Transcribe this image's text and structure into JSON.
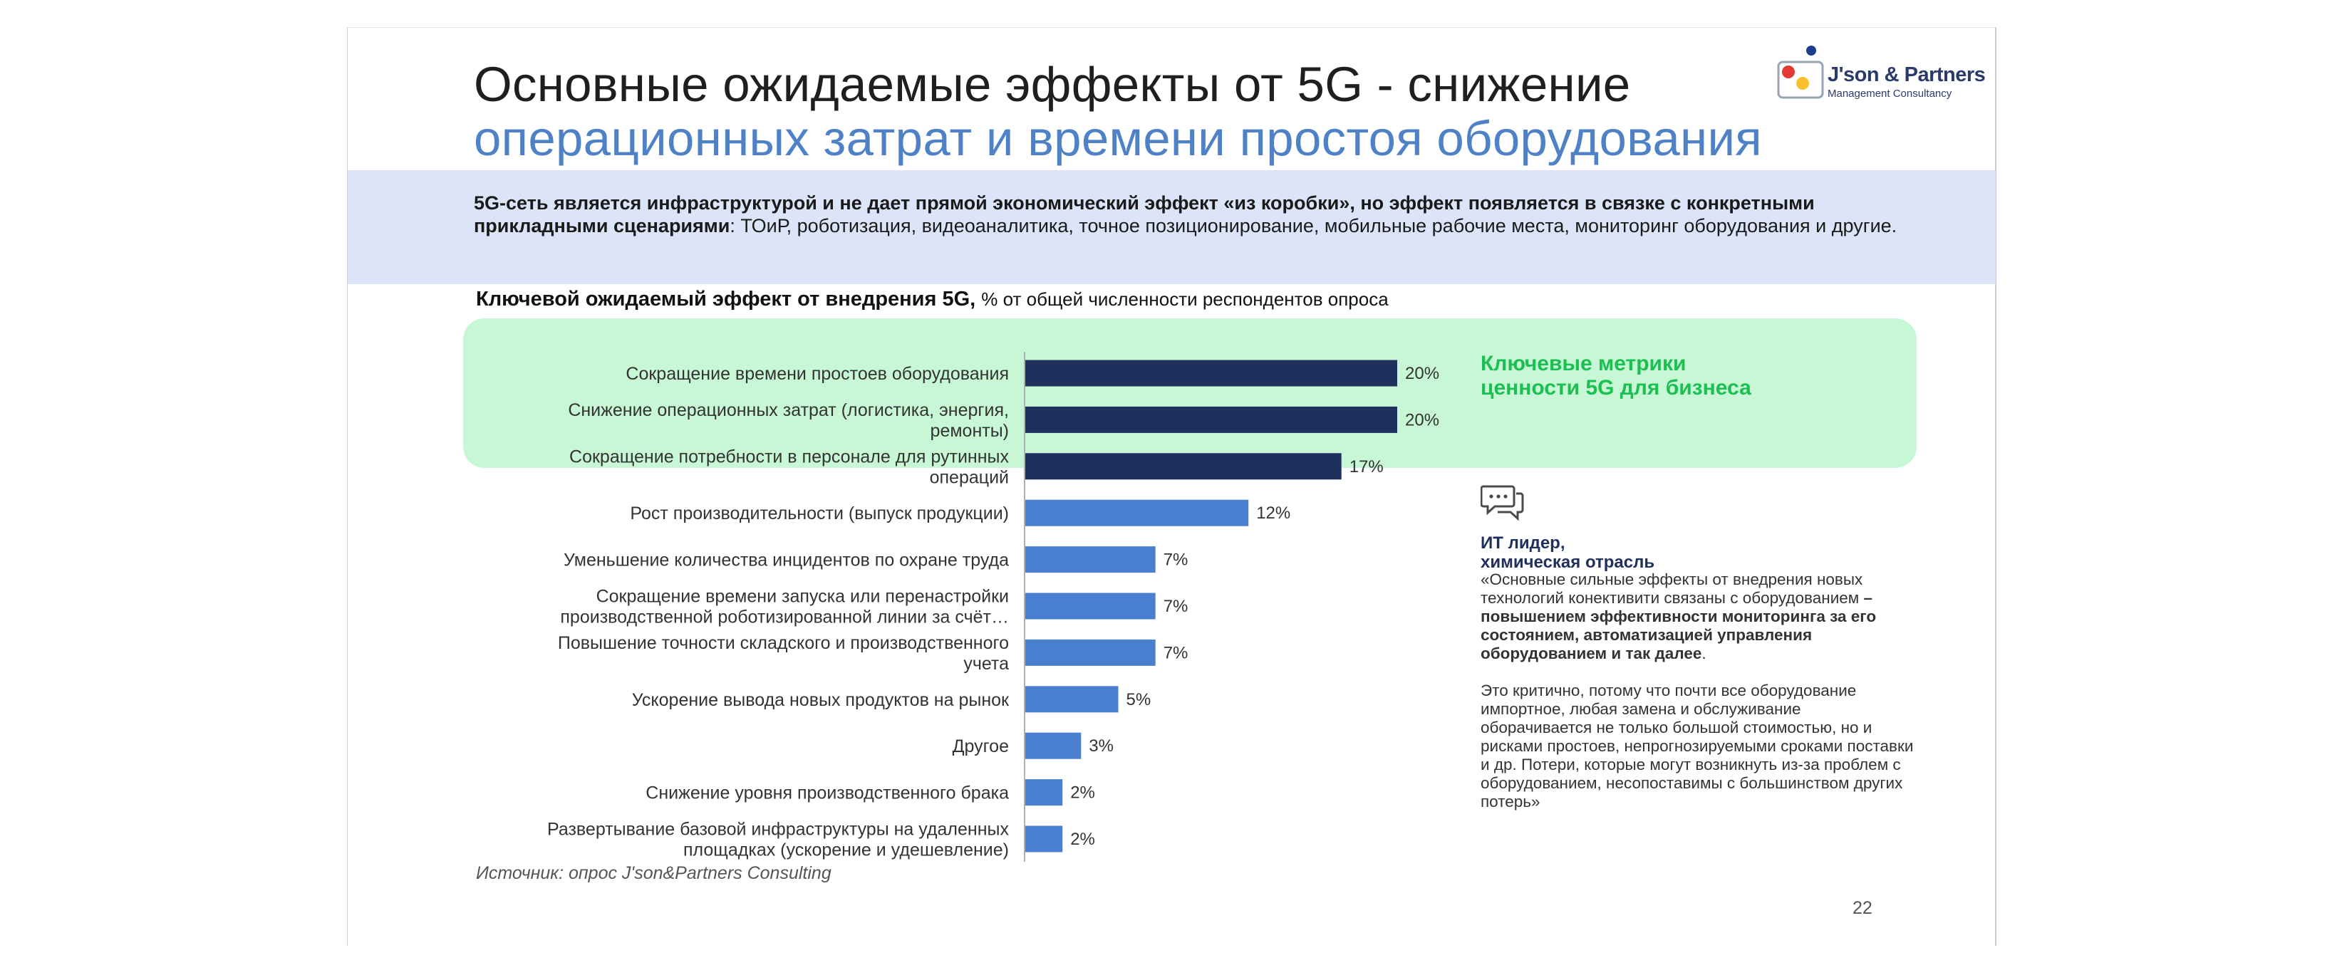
{
  "slide": {
    "title_line1": "Основные ожидаемые эффекты от 5G - снижение",
    "title_line2": "операционных затрат и времени простоя оборудования",
    "logo": {
      "name": "J'son & Partners",
      "subtitle": "Management Consultancy",
      "dot_colors": [
        "#e53935",
        "#fbc02d",
        "#1e3c8c"
      ]
    },
    "banner": {
      "bold_text": "5G-сеть является инфраструктурой и не дает прямой экономический эффект «из коробки», но эффект появляется в связке с конкретными прикладными сценариями",
      "normal_text": ": ТОиР, роботизация, видеоаналитика, точное позиционирование, мобильные рабочие места, мониторинг оборудования и другие."
    },
    "highlight_label": "Ключевые метрики ценности 5G для бизнеса",
    "quote": {
      "author_line1": "ИТ лидер,",
      "author_line2": "химическая отрасль",
      "p1_normal": "«Основные сильные эффекты от внедрения новых технологий конективити связаны с оборудованием ",
      "p1_bold": "– повышением эффективности мониторинга за его состоянием, автоматизацией управления оборудованием и так далее",
      "p1_end": ".",
      "p2": "Это критично, потому что почти все оборудование импортное, любая замена и обслуживание оборачивается не только большой стоимостью, но и рисками простоев, непрогнозируемыми сроками поставки и др. Потери, которые могут возникнуть из-за проблем с оборудованием, несопоставимы с большинством других потерь»"
    },
    "source": "Источник: опрос J'son&Partners Consulting",
    "page_number": "22"
  },
  "chart_data": {
    "type": "bar",
    "orientation": "horizontal",
    "title": "Ключевой ожидаемый эффект от внедрения 5G,",
    "subtitle": "% от общей численности респондентов опроса",
    "categories": [
      "Сокращение времени простоев оборудования",
      "Снижение операционных затрат (логистика, энергия, ремонты)",
      "Сокращение потребности в персонале для рутинных операций",
      "Рост производительности (выпуск продукции)",
      "Уменьшение количества инцидентов по охране труда",
      "Сокращение времени запуска или перенастройки производственной роботизированной линии за счёт…",
      "Повышение точности складского и производственного учета",
      "Ускорение вывода новых продуктов на рынок",
      "Другое",
      "Снижение уровня производственного брака",
      "Развертывание базовой инфраструктуры на удаленных площадках (ускорение и удешевление)"
    ],
    "category_lines": [
      [
        "Сокращение времени простоев оборудования"
      ],
      [
        "Снижение операционных затрат (логистика, энергия,",
        "ремонты)"
      ],
      [
        "Сокращение потребности в персонале для рутинных",
        "операций"
      ],
      [
        "Рост производительности (выпуск продукции)"
      ],
      [
        "Уменьшение количества инцидентов по охране труда"
      ],
      [
        "Сокращение времени запуска или перенастройки",
        "производственной роботизированной линии за счёт…"
      ],
      [
        "Повышение точности складского и производственного",
        "учета"
      ],
      [
        "Ускорение вывода новых продуктов на рынок"
      ],
      [
        "Другое"
      ],
      [
        "Снижение уровня производственного брака"
      ],
      [
        "Развертывание базовой инфраструктуры на удаленных",
        "площадках (ускорение и удешевление)"
      ]
    ],
    "values": [
      20,
      20,
      17,
      12,
      7,
      7,
      7,
      5,
      3,
      2,
      2
    ],
    "value_labels": [
      "20%",
      "20%",
      "17%",
      "12%",
      "7%",
      "7%",
      "7%",
      "5%",
      "3%",
      "2%",
      "2%"
    ],
    "unit": "%",
    "highlighted_count": 3,
    "colors": {
      "highlighted": "#1f2f5e",
      "normal": "#4a7fcf"
    },
    "xlim": [
      0,
      20
    ],
    "grid": false,
    "legend": "none"
  }
}
